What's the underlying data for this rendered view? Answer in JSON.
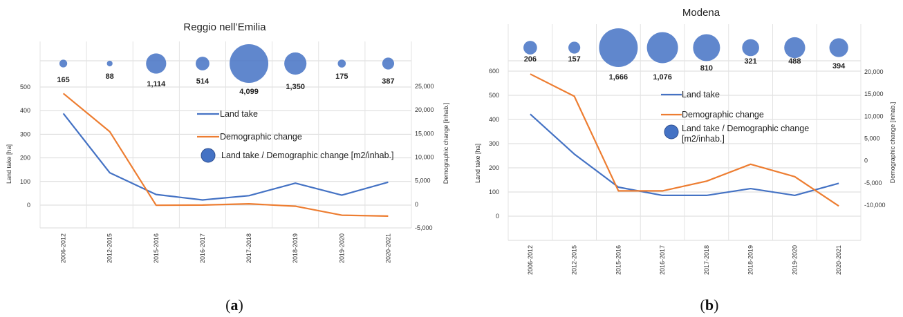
{
  "chart_data": [
    {
      "type": "line",
      "panel_label": "(a)",
      "title": "Reggio nell’Emilia",
      "categories": [
        "2006-2012",
        "2012-2015",
        "2015-2016",
        "2016-2017",
        "2017-2018",
        "2018-2019",
        "2019-2020",
        "2020-2021"
      ],
      "ylabel": "Land take [ha]",
      "y2label": "Demographic change [inhab.]",
      "ylim": [
        -100,
        500
      ],
      "yticks": [
        "0",
        "100",
        "200",
        "300",
        "400",
        "500"
      ],
      "y2lim": [
        -5000,
        25000
      ],
      "y2ticks": [
        "-5,000",
        "0",
        "5,000",
        "10,000",
        "15,000",
        "20,000",
        "25,000"
      ],
      "series": [
        {
          "name": "Land take",
          "axis": "left",
          "color": "#4472c4",
          "values": [
            388,
            137,
            45,
            22,
            40,
            93,
            42,
            97
          ]
        },
        {
          "name": "Demographic change",
          "axis": "right",
          "color": "#ed7d31",
          "values": [
            23500,
            15400,
            -200,
            -150,
            100,
            -400,
            -2300,
            -2500
          ]
        }
      ],
      "bubbles": {
        "name": "Land take / Demographic change [m2/inhab.]",
        "color": "#4472c4",
        "values": [
          165,
          88,
          1114,
          514,
          4099,
          1350,
          175,
          387
        ],
        "labels": [
          "165",
          "88",
          "1,114",
          "514",
          "4,099",
          "1,350",
          "175",
          "387"
        ]
      },
      "legend": [
        "Land take",
        "Demographic change",
        "Land take / Demographic change [m2/inhab.]"
      ]
    },
    {
      "type": "line",
      "panel_label": "(b)",
      "title": "Modena",
      "categories": [
        "2006-2012",
        "2012-2015",
        "2015-2016",
        "2016-2017",
        "2017-2018",
        "2018-2019",
        "2019-2020",
        "2020-2021"
      ],
      "ylabel": "Land take [ha]",
      "y2label": "Demographic change [inhab.]",
      "ylim": [
        -100,
        600
      ],
      "yticks": [
        "0",
        "100",
        "200",
        "300",
        "400",
        "500",
        "600"
      ],
      "y2lim": [
        -15000,
        20000
      ],
      "y2ticks": [
        "-10,000",
        "-5,000",
        "0",
        "5,000",
        "10,000",
        "15,000",
        "20,000"
      ],
      "series": [
        {
          "name": "Land take",
          "axis": "left",
          "color": "#4472c4",
          "values": [
            422,
            257,
            120,
            86,
            86,
            114,
            86,
            136
          ]
        },
        {
          "name": "Demographic change",
          "axis": "right",
          "color": "#ed7d31",
          "values": [
            19500,
            14500,
            -6800,
            -6800,
            -4600,
            -800,
            -3600,
            -10200
          ]
        }
      ],
      "bubbles": {
        "name": "Land take / Demographic change [m2/inhab.]",
        "color": "#4472c4",
        "values": [
          206,
          157,
          1666,
          1076,
          810,
          321,
          488,
          394
        ],
        "labels": [
          "206",
          "157",
          "1,666",
          "1,076",
          "810",
          "321",
          "488",
          "394"
        ]
      },
      "legend": [
        "Land take",
        "Demographic change",
        "Land take / Demographic change [m2/inhab.]"
      ]
    }
  ]
}
